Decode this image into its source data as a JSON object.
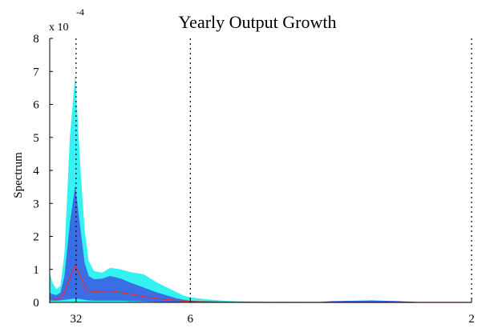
{
  "chart_data": {
    "type": "area",
    "title": "Yearly Output Growth",
    "xlabel": "",
    "ylabel": "Spectrum",
    "y_multiplier": {
      "base": "x 10",
      "exponent": "-4"
    },
    "ylim": [
      0,
      8
    ],
    "y_ticks": [
      {
        "value": 0,
        "label": "0"
      },
      {
        "value": 1,
        "label": "1"
      },
      {
        "value": 2,
        "label": "2"
      },
      {
        "value": 3,
        "label": "3"
      },
      {
        "value": 4,
        "label": "4"
      },
      {
        "value": 5,
        "label": "5"
      },
      {
        "value": 6,
        "label": "6"
      },
      {
        "value": 7,
        "label": "7"
      },
      {
        "value": 8,
        "label": "8"
      }
    ],
    "x_ticks": [
      {
        "frequency": 0.196,
        "label": "32"
      },
      {
        "frequency": 1.047,
        "label": "6"
      },
      {
        "frequency": 3.1416,
        "label": "2"
      }
    ],
    "xlim": [
      0,
      3.1416
    ],
    "vertical_reference_lines": [
      0.196,
      1.047,
      3.1416
    ],
    "grid": false,
    "legend": "none",
    "colors": {
      "outer_band": "#34f2f2",
      "inner_band": "#3a6ee4",
      "median_line": "#e0303a",
      "axis": "#000000",
      "reference_line": "#000000"
    },
    "x": [
      0,
      0.02,
      0.05,
      0.08,
      0.11,
      0.15,
      0.19,
      0.23,
      0.26,
      0.29,
      0.33,
      0.39,
      0.45,
      0.53,
      0.6,
      0.7,
      0.8,
      0.9,
      0.95,
      1.0,
      1.05,
      1.15,
      1.3,
      1.4,
      1.6,
      1.85,
      2.0,
      2.1,
      2.4,
      2.6,
      2.75,
      2.9,
      3.1416
    ],
    "series": [
      {
        "id": "outer_band",
        "lower": [
          0.02,
          0.01,
          0.01,
          0.01,
          0.01,
          0.01,
          0.01,
          0.01,
          0.01,
          0.01,
          0.01,
          0.01,
          0.01,
          0.01,
          0.01,
          0.01,
          0.01,
          0.005,
          0.005,
          0.005,
          0,
          0,
          0,
          0,
          0,
          0,
          0,
          0,
          0,
          0,
          0,
          0,
          0
        ],
        "upper": [
          0.92,
          0.6,
          0.4,
          0.5,
          1.5,
          5.0,
          6.9,
          4.0,
          2.2,
          1.25,
          0.95,
          0.9,
          1.05,
          1.0,
          0.92,
          0.85,
          0.6,
          0.4,
          0.3,
          0.2,
          0.15,
          0.1,
          0.05,
          0.03,
          0.02,
          0.015,
          0.015,
          0.02,
          0.02,
          0.015,
          0.01,
          0.01,
          0.01
        ]
      },
      {
        "id": "inner_band",
        "lower": [
          0.06,
          0.05,
          0.05,
          0.06,
          0.08,
          0.1,
          0.12,
          0.1,
          0.08,
          0.06,
          0.05,
          0.05,
          0.05,
          0.05,
          0.04,
          0.03,
          0.02,
          0.01,
          0.01,
          0.005,
          0.005,
          0,
          0,
          0,
          0,
          0,
          0,
          0,
          0,
          0,
          0,
          0,
          0
        ],
        "upper": [
          0.3,
          0.25,
          0.22,
          0.3,
          0.8,
          2.4,
          3.55,
          2.2,
          1.2,
          0.8,
          0.7,
          0.72,
          0.8,
          0.72,
          0.6,
          0.45,
          0.3,
          0.18,
          0.12,
          0.08,
          0.05,
          0.03,
          0.02,
          0.015,
          0.01,
          0.01,
          0.01,
          0.04,
          0.06,
          0.04,
          0.01,
          0.005,
          0.005
        ]
      },
      {
        "id": "median",
        "values": [
          0.12,
          0.1,
          0.1,
          0.15,
          0.3,
          0.75,
          1.1,
          0.8,
          0.45,
          0.35,
          0.33,
          0.34,
          0.35,
          0.3,
          0.25,
          0.18,
          0.12,
          0.08,
          0.06,
          0.04,
          0.03,
          0.02,
          0.01,
          0.005,
          0,
          0,
          0,
          0,
          0,
          0,
          0,
          0,
          0
        ]
      }
    ]
  }
}
